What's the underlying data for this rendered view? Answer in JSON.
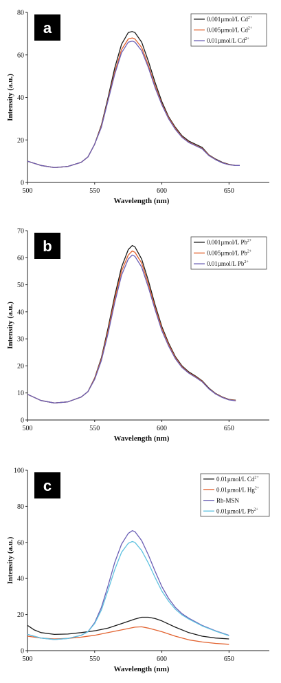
{
  "chart_data": [
    {
      "type": "line",
      "panel_label": "a",
      "xlabel": "Wavelength (nm)",
      "ylabel": "Intensity (a.u.)",
      "xlim": [
        500,
        680
      ],
      "ylim": [
        0,
        80
      ],
      "xticks": [
        500,
        550,
        600,
        650
      ],
      "yticks": [
        0,
        20,
        40,
        60,
        80
      ],
      "legend_position": "top-right",
      "series": [
        {
          "name": "0.001µmol/L Cd",
          "sup": "2+",
          "color": "#1a1a1a",
          "x": [
            500,
            510,
            520,
            530,
            540,
            545,
            550,
            555,
            560,
            565,
            570,
            575,
            578,
            580,
            585,
            590,
            595,
            600,
            605,
            610,
            615,
            620,
            625,
            630,
            635,
            640,
            645,
            650,
            655,
            658
          ],
          "y": [
            10,
            8,
            7,
            7.5,
            9.5,
            12,
            18,
            27,
            40,
            54,
            65,
            70.5,
            71,
            70.5,
            66,
            57,
            47,
            38,
            31,
            26,
            22,
            19.5,
            18,
            16.5,
            13,
            11,
            9.5,
            8.5,
            8,
            8
          ]
        },
        {
          "name": "0.005µmol/L Cd",
          "sup": "2+",
          "color": "#e2622f",
          "x": [
            500,
            510,
            520,
            530,
            540,
            545,
            550,
            555,
            560,
            565,
            570,
            575,
            578,
            580,
            585,
            590,
            595,
            600,
            605,
            610,
            615,
            620,
            625,
            630,
            635,
            640,
            645,
            650,
            655,
            658
          ],
          "y": [
            10,
            8,
            7,
            7.5,
            9.5,
            12,
            18,
            26.5,
            39,
            52,
            62.5,
            67.5,
            68,
            67.5,
            63.5,
            55,
            45.5,
            37,
            30.5,
            25.5,
            21.5,
            19,
            17.5,
            16,
            12.8,
            10.8,
            9.3,
            8.4,
            8,
            8
          ]
        },
        {
          "name": "0.01µmol/L Cd",
          "sup": "2+",
          "color": "#6a5fb5",
          "x": [
            500,
            510,
            520,
            530,
            540,
            545,
            550,
            555,
            560,
            565,
            570,
            575,
            578,
            580,
            585,
            590,
            595,
            600,
            605,
            610,
            615,
            620,
            625,
            630,
            635,
            640,
            645,
            650,
            655,
            658
          ],
          "y": [
            10,
            8,
            7,
            7.5,
            9.5,
            12,
            18,
            26,
            38.5,
            51,
            61,
            66,
            66.5,
            66,
            62,
            54,
            44.5,
            36.5,
            30,
            25,
            21.2,
            18.8,
            17.3,
            15.8,
            12.6,
            10.7,
            9.2,
            8.3,
            8,
            8
          ]
        }
      ]
    },
    {
      "type": "line",
      "panel_label": "b",
      "xlabel": "Wavelength (nm)",
      "ylabel": "Intensity (a.u.)",
      "xlim": [
        500,
        680
      ],
      "ylim": [
        0,
        70
      ],
      "xticks": [
        500,
        550,
        600,
        650
      ],
      "yticks": [
        0,
        10,
        20,
        30,
        40,
        50,
        60,
        70
      ],
      "legend_position": "top-right",
      "series": [
        {
          "name": "0.001µmol/L Pb",
          "sup": "2+",
          "color": "#1a1a1a",
          "x": [
            500,
            510,
            520,
            530,
            540,
            545,
            550,
            555,
            560,
            565,
            570,
            575,
            578,
            580,
            585,
            590,
            595,
            600,
            605,
            610,
            615,
            620,
            625,
            630,
            635,
            640,
            645,
            650,
            655
          ],
          "y": [
            9.5,
            7.2,
            6.3,
            6.7,
            8.5,
            10.5,
            15.5,
            23,
            34,
            46,
            56.5,
            63,
            64.5,
            64,
            59.5,
            51.5,
            42.5,
            34.5,
            28.5,
            23.5,
            20,
            17.8,
            16.3,
            14.5,
            11.8,
            9.8,
            8.5,
            7.6,
            7.3
          ]
        },
        {
          "name": "0.005µmol/L Pb",
          "sup": "2+",
          "color": "#e2622f",
          "x": [
            500,
            510,
            520,
            530,
            540,
            545,
            550,
            555,
            560,
            565,
            570,
            575,
            578,
            580,
            585,
            590,
            595,
            600,
            605,
            610,
            615,
            620,
            625,
            630,
            635,
            640,
            645,
            650,
            655
          ],
          "y": [
            9.5,
            7.2,
            6.3,
            6.7,
            8.5,
            10.5,
            15.3,
            22.5,
            33,
            44.8,
            55,
            61,
            62.5,
            62,
            58,
            50.2,
            41.6,
            33.8,
            28,
            23.1,
            19.7,
            17.5,
            16,
            14.3,
            11.6,
            9.7,
            8.4,
            7.5,
            7.2
          ]
        },
        {
          "name": "0.01µmol/L Pb",
          "sup": "2+",
          "color": "#6a5fb5",
          "x": [
            500,
            510,
            520,
            530,
            540,
            545,
            550,
            555,
            560,
            565,
            570,
            575,
            578,
            580,
            585,
            590,
            595,
            600,
            605,
            610,
            615,
            620,
            625,
            630,
            635,
            640,
            645,
            650,
            655
          ],
          "y": [
            9.5,
            7.2,
            6.3,
            6.7,
            8.5,
            10.5,
            15,
            22,
            32,
            43.5,
            53.5,
            59.5,
            61,
            60.5,
            56.5,
            49,
            40.7,
            33,
            27.4,
            22.7,
            19.4,
            17.3,
            15.8,
            14.1,
            11.5,
            9.6,
            8.3,
            7.4,
            7.1
          ]
        }
      ]
    },
    {
      "type": "line",
      "panel_label": "c",
      "xlabel": "Wavelength (nm)",
      "ylabel": "Intensity (a.u.)",
      "xlim": [
        500,
        680
      ],
      "ylim": [
        0,
        100
      ],
      "xticks": [
        500,
        550,
        600,
        650
      ],
      "yticks": [
        0,
        20,
        40,
        60,
        80,
        100
      ],
      "legend_position": "top-right",
      "series": [
        {
          "name": "0.01µmol/L Cd",
          "sup": "2+",
          "color": "#1a1a1a",
          "x": [
            500,
            505,
            510,
            520,
            530,
            540,
            550,
            560,
            570,
            580,
            585,
            590,
            595,
            600,
            610,
            620,
            630,
            640,
            650
          ],
          "y": [
            14,
            11.5,
            10,
            9,
            9.2,
            10,
            11,
            12.5,
            15,
            17.5,
            18.5,
            18.5,
            17.8,
            16.5,
            13,
            10,
            8,
            7,
            6.5
          ]
        },
        {
          "name": "0.01µmol/L Hg",
          "sup": "2+",
          "color": "#e2622f",
          "x": [
            500,
            510,
            520,
            530,
            540,
            550,
            560,
            570,
            580,
            585,
            590,
            600,
            610,
            620,
            630,
            640,
            650
          ],
          "y": [
            8,
            7,
            6.5,
            6.8,
            7.5,
            8.5,
            10,
            11.5,
            13,
            13.2,
            12.5,
            10.5,
            8,
            6,
            4.8,
            4,
            3.5
          ]
        },
        {
          "name": "Rb-MSN",
          "sup": "",
          "color": "#6a5fb5",
          "x": [
            500,
            510,
            520,
            530,
            540,
            545,
            550,
            555,
            560,
            565,
            570,
            575,
            578,
            580,
            585,
            590,
            595,
            600,
            605,
            610,
            615,
            620,
            630,
            640,
            650
          ],
          "y": [
            9,
            7,
            6.2,
            6.7,
            8.5,
            10.5,
            15.5,
            24,
            36,
            49,
            59,
            65,
            66.5,
            66,
            61,
            53,
            44,
            35.5,
            29,
            24,
            20.5,
            18,
            14,
            11,
            8.5
          ]
        },
        {
          "name": "0.01µmol/L Pb",
          "sup": "2+",
          "color": "#5fc2e0",
          "x": [
            500,
            510,
            520,
            530,
            540,
            545,
            550,
            555,
            560,
            565,
            570,
            575,
            578,
            580,
            585,
            590,
            595,
            600,
            605,
            610,
            615,
            620,
            630,
            640,
            650
          ],
          "y": [
            9,
            7,
            6.2,
            6.7,
            8.5,
            10.5,
            15,
            22.5,
            33.5,
            45,
            54.5,
            59.5,
            60.5,
            60,
            55.5,
            48.5,
            40.5,
            33,
            27.5,
            23,
            19.8,
            17.5,
            13.7,
            10.8,
            8.3
          ]
        }
      ]
    }
  ]
}
